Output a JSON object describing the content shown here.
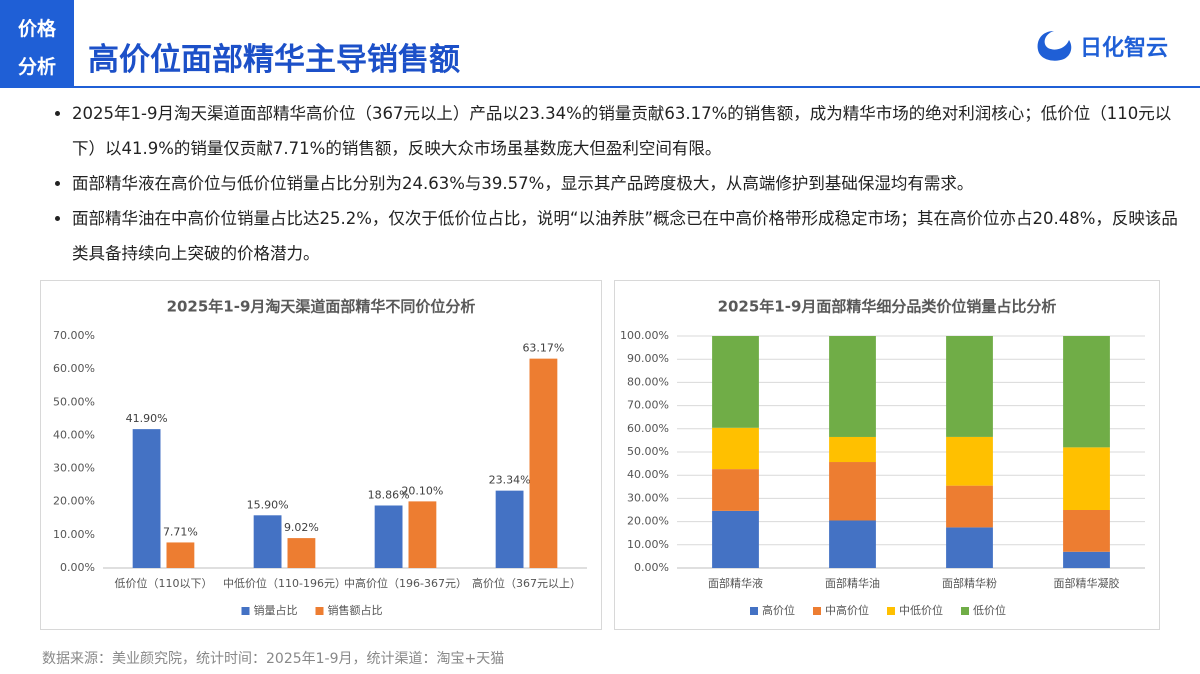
{
  "header": {
    "tag": [
      "价格",
      "分析"
    ],
    "title": "高价位面部精华主导销售额",
    "logo": "日化智云"
  },
  "bullets": [
    "2025年1-9月淘天渠道面部精华高价位（367元以上）产品以23.34%的销量贡献63.17%的销售额，成为精华市场的绝对利润核心；低价位（110元以下）以41.9%的销量仅贡献7.71%的销售额，反映大众市场虽基数庞大但盈利空间有限。",
    "面部精华液在高价位与低价位销量占比分别为24.63%与39.57%，显示其产品跨度极大，从高端修护到基础保湿均有需求。",
    "面部精华油在中高价位销量占比达25.2%，仅次于低价位占比，说明“以油养肤”概念已在中高价格带形成稳定市场；其在高价位亦占20.48%，反映该品类具备持续向上突破的价格潜力。"
  ],
  "source": "数据来源：美业颜究院，统计时间：2025年1-9月，统计渠道：淘宝+天猫",
  "chart_data": [
    {
      "type": "bar",
      "title": "2025年1-9月淘天渠道面部精华不同价位分析",
      "categories": [
        "低价位（110以下）",
        "中低价位（110-196元）",
        "中高价位（196-367元）",
        "高价位（367元以上）"
      ],
      "series": [
        {
          "name": "销量占比",
          "color": "#4472c4",
          "values": [
            41.9,
            15.9,
            18.86,
            23.34
          ],
          "value_labels": [
            "41.90%",
            "15.90%",
            "18.86%",
            "23.34%"
          ]
        },
        {
          "name": "销售额占比",
          "color": "#ed7d31",
          "values": [
            7.71,
            9.02,
            20.1,
            63.17
          ],
          "value_labels": [
            "7.71%",
            "9.02%",
            "20.10%",
            "63.17%"
          ]
        }
      ],
      "ylim": [
        0,
        70
      ],
      "yticks": [
        {
          "value": 0,
          "label": "0.00%"
        },
        {
          "value": 10,
          "label": "10.00%"
        },
        {
          "value": 20,
          "label": "20.00%"
        },
        {
          "value": 30,
          "label": "30.00%"
        },
        {
          "value": 40,
          "label": "40.00%"
        },
        {
          "value": 50,
          "label": "50.00%"
        },
        {
          "value": 60,
          "label": "60.00%"
        },
        {
          "value": 70,
          "label": "70.00%"
        }
      ],
      "grid": false,
      "legend": "bottom"
    },
    {
      "type": "stacked_bar",
      "title": "2025年1-9月面部精华细分品类价位销量占比分析",
      "categories": [
        "面部精华液",
        "面部精华油",
        "面部精华粉",
        "面部精华凝胶"
      ],
      "series": [
        {
          "name": "高价位",
          "color": "#4472c4",
          "values": [
            24.63,
            20.48,
            17.5,
            7
          ]
        },
        {
          "name": "中高价位",
          "color": "#ed7d31",
          "values": [
            18,
            25.2,
            18,
            18
          ]
        },
        {
          "name": "中低价位",
          "color": "#ffc000",
          "values": [
            17.8,
            10.8,
            21,
            27
          ]
        },
        {
          "name": "低价位",
          "color": "#70ad47",
          "values": [
            39.57,
            43.52,
            43.5,
            48
          ]
        }
      ],
      "ylim": [
        0,
        100
      ],
      "yticks": [
        {
          "value": 0,
          "label": "0.00%"
        },
        {
          "value": 10,
          "label": "10.00%"
        },
        {
          "value": 20,
          "label": "20.00%"
        },
        {
          "value": 30,
          "label": "30.00%"
        },
        {
          "value": 40,
          "label": "40.00%"
        },
        {
          "value": 50,
          "label": "50.00%"
        },
        {
          "value": 60,
          "label": "60.00%"
        },
        {
          "value": 70,
          "label": "70.00%"
        },
        {
          "value": 80,
          "label": "80.00%"
        },
        {
          "value": 90,
          "label": "90.00%"
        },
        {
          "value": 100,
          "label": "100.00%"
        }
      ],
      "grid": true,
      "legend": "bottom"
    }
  ]
}
